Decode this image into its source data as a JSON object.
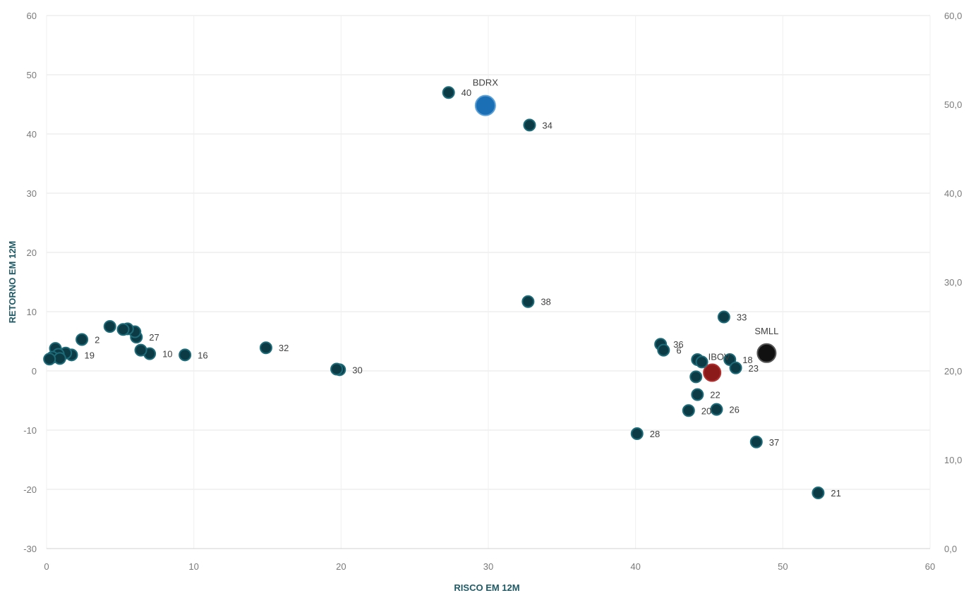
{
  "chart_data": {
    "type": "scatter",
    "title": "",
    "xlabel": "RISCO EM 12M",
    "ylabel": "RETORNO EM 12M",
    "xlim": [
      0,
      60
    ],
    "ylim": [
      -30,
      60
    ],
    "y2lim": [
      0,
      60
    ],
    "x_ticks": [
      "0",
      "10",
      "20",
      "30",
      "40",
      "50",
      "60"
    ],
    "y_ticks": [
      "-30",
      "-20",
      "-10",
      "0",
      "10",
      "20",
      "30",
      "40",
      "50",
      "60"
    ],
    "y2_ticks": [
      "0,0",
      "10,0",
      "20,0",
      "30,0",
      "40,0",
      "50,0",
      "60,0"
    ],
    "grid": true,
    "colors": {
      "fund": "#0d3b45",
      "fund_edge": "#1d6b78",
      "bdrx": "#1a6fb5",
      "ibov": "#8b1a1a",
      "smll": "#111111",
      "axis_label": "#1f5a66"
    },
    "points": [
      {
        "label": "40",
        "x": 27.3,
        "y": 47.0,
        "kind": "fund"
      },
      {
        "label": "BDRX",
        "x": 29.8,
        "y": 44.8,
        "kind": "bdrx"
      },
      {
        "label": "34",
        "x": 32.8,
        "y": 41.5,
        "kind": "fund"
      },
      {
        "label": "38",
        "x": 32.7,
        "y": 11.7,
        "kind": "fund"
      },
      {
        "label": "33",
        "x": 46.0,
        "y": 9.1,
        "kind": "fund"
      },
      {
        "label": "SMLL",
        "x": 48.9,
        "y": 3.0,
        "kind": "smll"
      },
      {
        "label": "36",
        "x": 41.7,
        "y": 4.5,
        "kind": "fund"
      },
      {
        "label": "6",
        "x": 41.9,
        "y": 3.5,
        "kind": "fund"
      },
      {
        "label": "IBOV",
        "x": 45.2,
        "y": -0.3,
        "kind": "ibov"
      },
      {
        "label": "18",
        "x": 46.4,
        "y": 1.9,
        "kind": "fund"
      },
      {
        "label": "23",
        "x": 46.8,
        "y": 0.5,
        "kind": "fund"
      },
      {
        "label": "",
        "x": 44.2,
        "y": 1.9,
        "kind": "fund"
      },
      {
        "label": "",
        "x": 44.5,
        "y": 1.5,
        "kind": "fund"
      },
      {
        "label": "",
        "x": 44.1,
        "y": -1.0,
        "kind": "fund"
      },
      {
        "label": "22",
        "x": 44.2,
        "y": -4.0,
        "kind": "fund"
      },
      {
        "label": "20",
        "x": 43.6,
        "y": -6.7,
        "kind": "fund"
      },
      {
        "label": "26",
        "x": 45.5,
        "y": -6.5,
        "kind": "fund"
      },
      {
        "label": "28",
        "x": 40.1,
        "y": -10.6,
        "kind": "fund"
      },
      {
        "label": "37",
        "x": 48.2,
        "y": -12.0,
        "kind": "fund"
      },
      {
        "label": "21",
        "x": 52.4,
        "y": -20.6,
        "kind": "fund"
      },
      {
        "label": "32",
        "x": 14.9,
        "y": 3.9,
        "kind": "fund"
      },
      {
        "label": "30",
        "x": 19.9,
        "y": 0.2,
        "kind": "fund"
      },
      {
        "label": "",
        "x": 19.7,
        "y": 0.3,
        "kind": "fund"
      },
      {
        "label": "16",
        "x": 9.4,
        "y": 2.7,
        "kind": "fund"
      },
      {
        "label": "10",
        "x": 7.0,
        "y": 2.9,
        "kind": "fund"
      },
      {
        "label": "27",
        "x": 6.1,
        "y": 5.7,
        "kind": "fund"
      },
      {
        "label": "",
        "x": 6.0,
        "y": 6.6,
        "kind": "fund"
      },
      {
        "label": "",
        "x": 6.4,
        "y": 3.5,
        "kind": "fund"
      },
      {
        "label": "",
        "x": 5.5,
        "y": 7.1,
        "kind": "fund"
      },
      {
        "label": "",
        "x": 5.2,
        "y": 7.0,
        "kind": "fund"
      },
      {
        "label": "",
        "x": 4.3,
        "y": 7.5,
        "kind": "fund"
      },
      {
        "label": "2",
        "x": 2.4,
        "y": 5.3,
        "kind": "fund"
      },
      {
        "label": "19",
        "x": 1.7,
        "y": 2.7,
        "kind": "fund"
      },
      {
        "label": "",
        "x": 1.3,
        "y": 3.0,
        "kind": "fund"
      },
      {
        "label": "",
        "x": 0.6,
        "y": 3.8,
        "kind": "fund"
      },
      {
        "label": "",
        "x": 0.8,
        "y": 2.8,
        "kind": "fund"
      },
      {
        "label": "",
        "x": 0.4,
        "y": 2.3,
        "kind": "fund"
      },
      {
        "label": "",
        "x": 0.9,
        "y": 2.1,
        "kind": "fund"
      },
      {
        "label": "",
        "x": 0.2,
        "y": 2.0,
        "kind": "fund"
      }
    ]
  }
}
